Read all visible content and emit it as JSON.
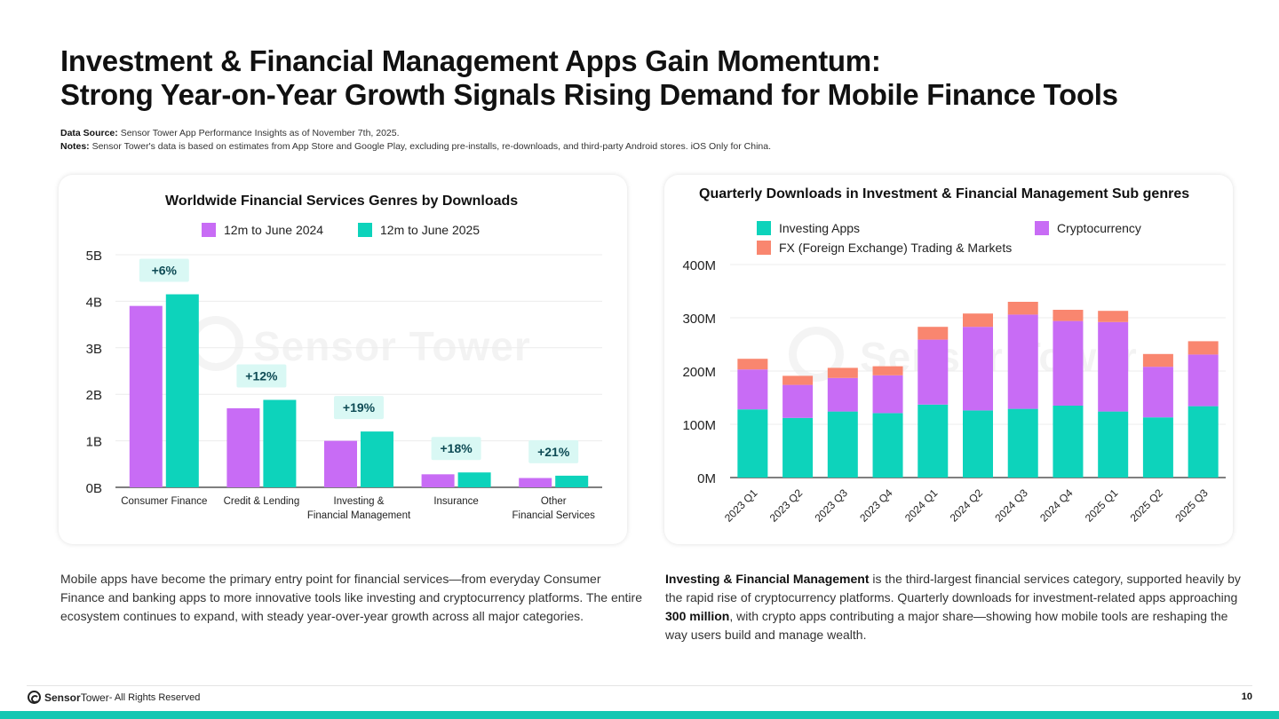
{
  "header": {
    "title_line1": "Investment & Financial Management Apps Gain Momentum:",
    "title_line2": "Strong Year-on-Year Growth Signals Rising Demand for Mobile Finance Tools"
  },
  "notes": {
    "source_label": "Data Source:",
    "source_text": "Sensor Tower App Performance Insights as of November 7th, 2025.",
    "notes_label": "Notes:",
    "notes_text": "Sensor Tower's data is based on estimates from App Store and Google Play, excluding pre-installs, re-downloads, and third-party Android stores. iOS Only for China."
  },
  "watermark": "Sensor Tower",
  "colors": {
    "purple": "#c86cf5",
    "teal": "#0dd3bb",
    "salmon": "#f9866f",
    "growth_badge_bg": "#d9f8f4"
  },
  "chart_data": [
    {
      "type": "bar",
      "title": "Worldwide Financial Services Genres by Downloads",
      "categories": [
        "Consumer Finance",
        "Credit & Lending",
        "Investing & Financial Management",
        "Insurance",
        "Other Financial Services"
      ],
      "category_lines": [
        [
          "Consumer Finance"
        ],
        [
          "Credit & Lending"
        ],
        [
          "Investing &",
          "Financial Management"
        ],
        [
          "Insurance"
        ],
        [
          "Other",
          "Financial Services"
        ]
      ],
      "series": [
        {
          "name": "12m to June 2024",
          "color": "#c86cf5",
          "values": [
            3.9,
            1.7,
            1.0,
            0.28,
            0.2
          ]
        },
        {
          "name": "12m to June 2025",
          "color": "#0dd3bb",
          "values": [
            4.15,
            1.88,
            1.2,
            0.32,
            0.25
          ]
        }
      ],
      "growth_labels": [
        "+6%",
        "+12%",
        "+19%",
        "+18%",
        "+21%"
      ],
      "yticks": [
        "0B",
        "1B",
        "2B",
        "3B",
        "4B",
        "5B"
      ],
      "ylim": [
        0,
        5
      ],
      "grid": true,
      "legend_position": "top"
    },
    {
      "type": "bar",
      "stacked": true,
      "title": "Quarterly Downloads in Investment & Financial Management Sub genres",
      "categories": [
        "2023 Q1",
        "2023 Q2",
        "2023 Q3",
        "2023 Q4",
        "2024 Q1",
        "2024 Q2",
        "2024 Q3",
        "2024 Q4",
        "2025 Q1",
        "2025 Q2",
        "2025 Q3"
      ],
      "series": [
        {
          "name": "Investing Apps",
          "color": "#0dd3bb",
          "values": [
            128,
            112,
            124,
            121,
            137,
            126,
            129,
            135,
            124,
            113,
            134
          ]
        },
        {
          "name": "Cryptocurrency",
          "color": "#c86cf5",
          "values": [
            75,
            62,
            63,
            71,
            122,
            157,
            177,
            159,
            168,
            95,
            97
          ]
        },
        {
          "name": "FX (Foreign Exchange) Trading & Markets",
          "color": "#f9866f",
          "values": [
            20,
            17,
            19,
            17,
            24,
            25,
            24,
            21,
            21,
            24,
            25
          ]
        }
      ],
      "yticks": [
        "0M",
        "100M",
        "200M",
        "300M",
        "400M"
      ],
      "ylim": [
        0,
        400
      ],
      "grid": true,
      "legend_position": "top"
    }
  ],
  "body": {
    "left_text": "Mobile apps have become the primary entry point for financial services—from everyday Consumer Finance and banking apps to more innovative tools like investing and cryptocurrency platforms. The entire ecosystem continues to expand, with steady year-over-year growth across all major categories.",
    "right_bold1": "Investing & Financial Management",
    "right_text1": " is the third-largest financial services category, supported heavily by the rapid rise of cryptocurrency platforms. Quarterly downloads for investment-related apps approaching ",
    "right_bold2": "300 million",
    "right_text2": ", with crypto apps contributing a major share—showing how mobile tools are reshaping the way users build and manage wealth."
  },
  "footer": {
    "brand_bold": "Sensor",
    "brand_rest": "Tower",
    "rights": " - All Rights Reserved",
    "page_number": "10"
  }
}
